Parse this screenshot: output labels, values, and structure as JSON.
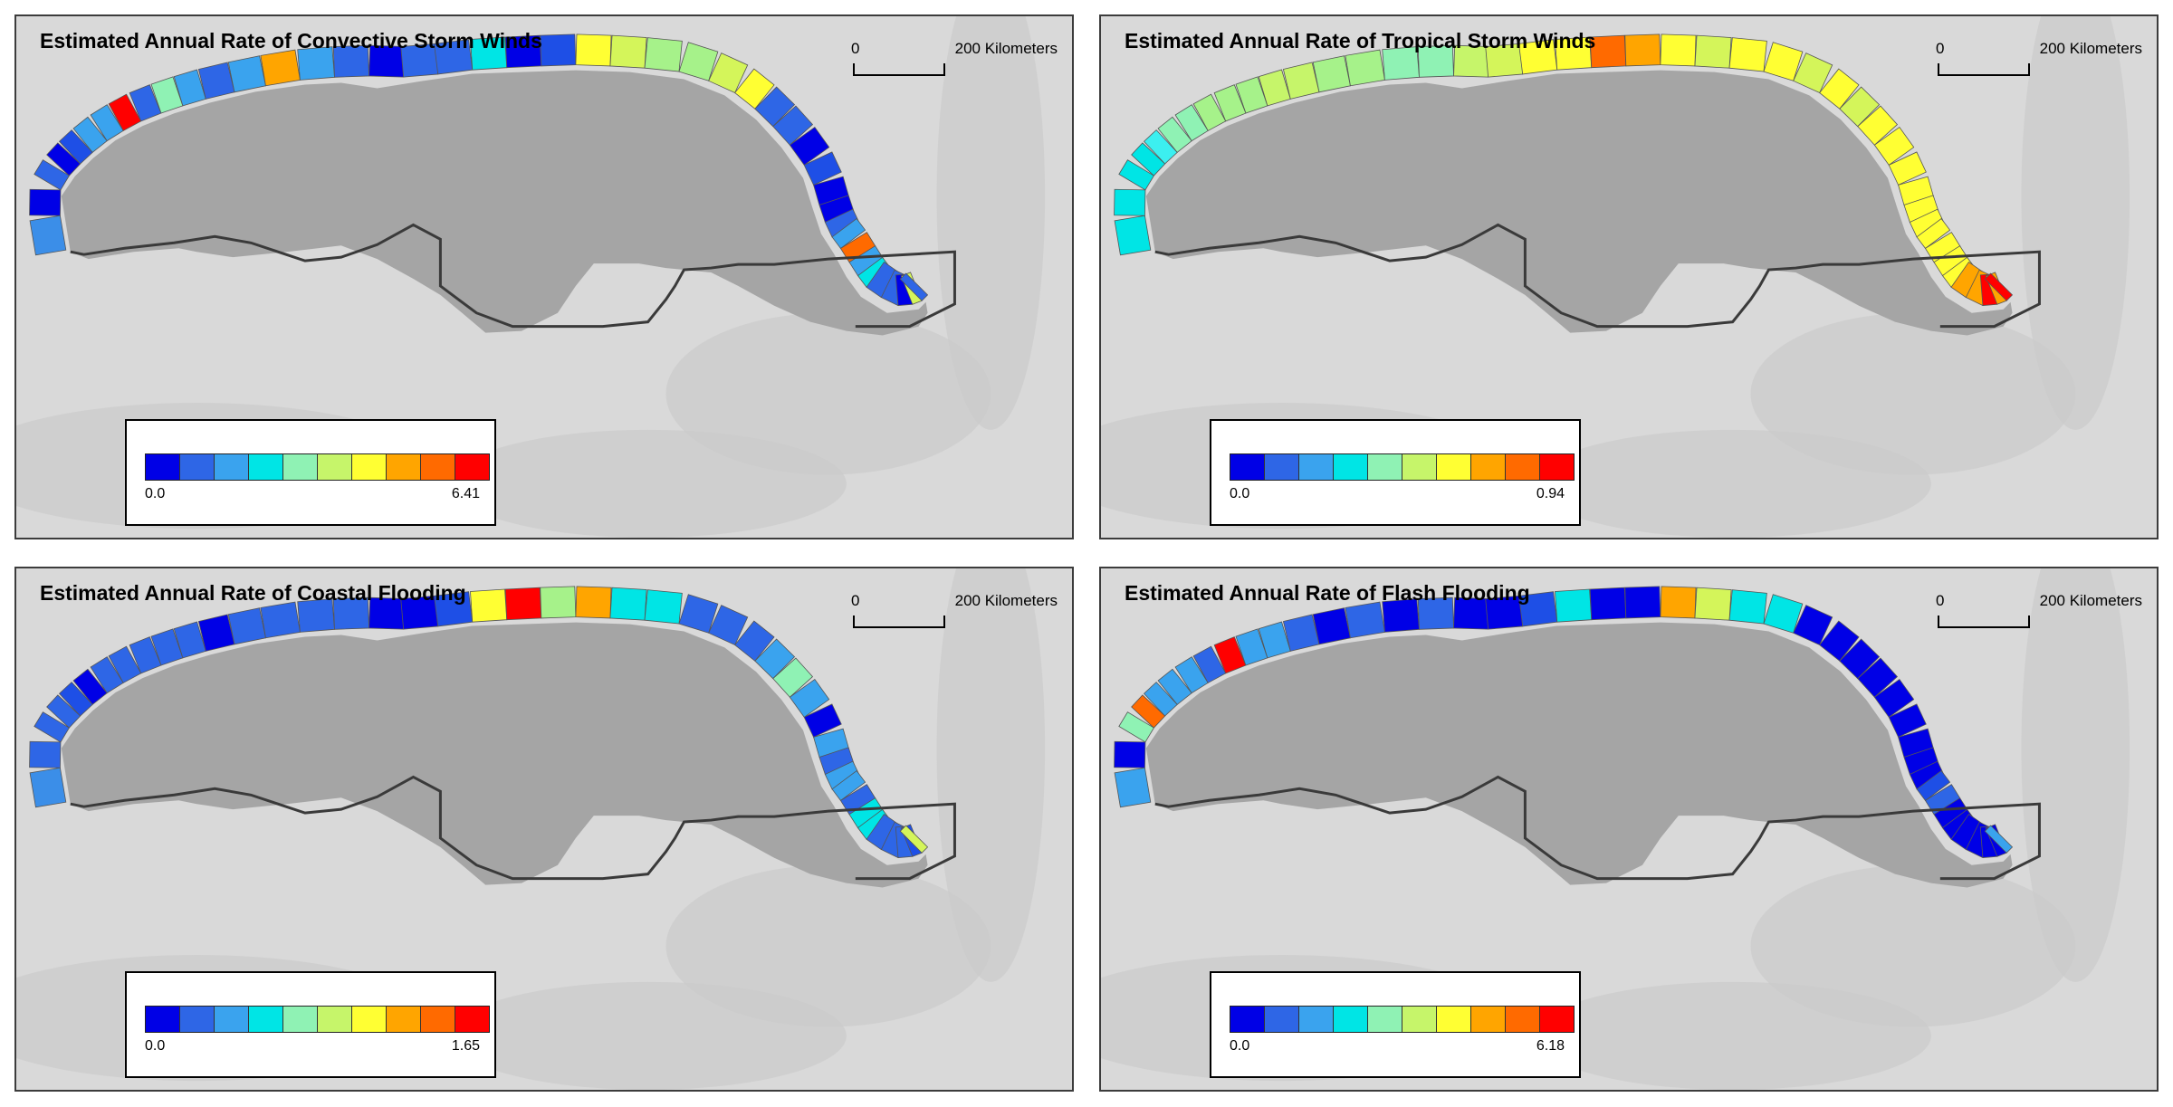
{
  "panels": [
    {
      "title": "Estimated Annual Rate of Convective Storm Winds",
      "scale_start": "0",
      "scale_end": "200 Kilometers",
      "legend_min": "0.0",
      "legend_max": "6.41",
      "segments": [
        "#3b8ee8",
        "#0000e6",
        "#2e66e6",
        "#0000e6",
        "#1e4fe6",
        "#3aa3ee",
        "#3aa3ee",
        "#ff0000",
        "#2e66e6",
        "#8ff2b4",
        "#3aa3ee",
        "#2e66e6",
        "#3aa3ee",
        "#ffa500",
        "#3aa3ee",
        "#2e66e6",
        "#0000e6",
        "#2e66e6",
        "#2e66e6",
        "#00e5e5",
        "#0000e6",
        "#1e4fe6",
        "#ffff33",
        "#d4f55a",
        "#a6f28a",
        "#a6f28a",
        "#d4f55a",
        "#ffff33",
        "#2e66e6",
        "#2e66e6",
        "#0000e6",
        "#1e4fe6",
        "#0000e6",
        "#0000e6",
        "#2e66e6",
        "#3aa3ee",
        "#ff6a00",
        "#3aa3ee",
        "#00e5e5",
        "#2e66e6",
        "#2e66e6",
        "#0000e6",
        "#d4f55a",
        "#2e66e6"
      ]
    },
    {
      "title": "Estimated Annual Rate of Tropical Storm Winds",
      "scale_start": "0",
      "scale_end": "200 Kilometers",
      "legend_min": "0.0",
      "legend_max": "0.94",
      "segments": [
        "#00e5e5",
        "#00e5e5",
        "#00e5e5",
        "#00e5e5",
        "#3ceff0",
        "#8ff2b4",
        "#8ff2b4",
        "#a6f28a",
        "#a6f28a",
        "#a6f28a",
        "#c6f56a",
        "#c6f56a",
        "#a6f28a",
        "#a6f28a",
        "#8ff2b4",
        "#8ff2b4",
        "#c6f56a",
        "#d4f55a",
        "#ffff33",
        "#ffff33",
        "#ff6a00",
        "#ffa500",
        "#ffff33",
        "#d4f55a",
        "#ffff33",
        "#ffff33",
        "#d4f55a",
        "#ffff33",
        "#d4f55a",
        "#ffff33",
        "#ffff33",
        "#ffff33",
        "#ffff33",
        "#ffff33",
        "#ffff33",
        "#ffff33",
        "#ffff33",
        "#ffff33",
        "#ffff33",
        "#ffa500",
        "#ffa500",
        "#ff0000",
        "#ffa500",
        "#ff0000"
      ]
    },
    {
      "title": "Estimated Annual Rate of Coastal Flooding",
      "scale_start": "0",
      "scale_end": "200 Kilometers",
      "legend_min": "0.0",
      "legend_max": "1.65",
      "segments": [
        "#3b8ee8",
        "#2e66e6",
        "#2e66e6",
        "#2e66e6",
        "#1e4fe6",
        "#0000e6",
        "#2e66e6",
        "#2e66e6",
        "#2e66e6",
        "#2e66e6",
        "#2e66e6",
        "#0000e6",
        "#2e66e6",
        "#2e66e6",
        "#2e66e6",
        "#2e66e6",
        "#0000e6",
        "#0000e6",
        "#1e4fe6",
        "#ffff33",
        "#ff0000",
        "#a6f28a",
        "#ffa500",
        "#00e5e5",
        "#00e5e5",
        "#2e66e6",
        "#2e66e6",
        "#2e66e6",
        "#3aa3ee",
        "#8ff2b4",
        "#3aa3ee",
        "#0000e6",
        "#3aa3ee",
        "#2e66e6",
        "#3aa3ee",
        "#3aa3ee",
        "#2e66e6",
        "#00e5e5",
        "#00e5e5",
        "#2e66e6",
        "#2e66e6",
        "#2e66e6",
        "#1e4fe6",
        "#d4f55a"
      ]
    },
    {
      "title": "Estimated Annual Rate of Flash Flooding",
      "scale_start": "0",
      "scale_end": "200 Kilometers",
      "legend_min": "0.0",
      "legend_max": "6.18",
      "segments": [
        "#3aa3ee",
        "#0000e6",
        "#8ff2b4",
        "#ff6a00",
        "#3aa3ee",
        "#3aa3ee",
        "#3aa3ee",
        "#2e66e6",
        "#ff0000",
        "#3aa3ee",
        "#3aa3ee",
        "#2e66e6",
        "#0000e6",
        "#2e66e6",
        "#0000e6",
        "#2e66e6",
        "#0000e6",
        "#0000e6",
        "#1e4fe6",
        "#00e5e5",
        "#0000e6",
        "#0000e6",
        "#ffa500",
        "#d4f55a",
        "#00e5e5",
        "#00e5e5",
        "#0000e6",
        "#0000e6",
        "#0000e6",
        "#0000e6",
        "#0000e6",
        "#0000e6",
        "#0000e6",
        "#0000e6",
        "#0000e6",
        "#1e4fe6",
        "#2e66e6",
        "#0000e6",
        "#0000e6",
        "#0000e6",
        "#0000e6",
        "#0000e6",
        "#0000e6",
        "#3aa3ee"
      ]
    }
  ],
  "legend_colors": [
    "#0000e6",
    "#2e66e6",
    "#3aa3ee",
    "#00e5e5",
    "#8ff2b4",
    "#c6f56a",
    "#ffff33",
    "#ffa500",
    "#ff6a00",
    "#ff0000"
  ],
  "colors": {
    "land": "#d9d9d9",
    "gulf": "#a5a5a5",
    "boundary": "#3a3a3a",
    "outline": "#555555"
  }
}
